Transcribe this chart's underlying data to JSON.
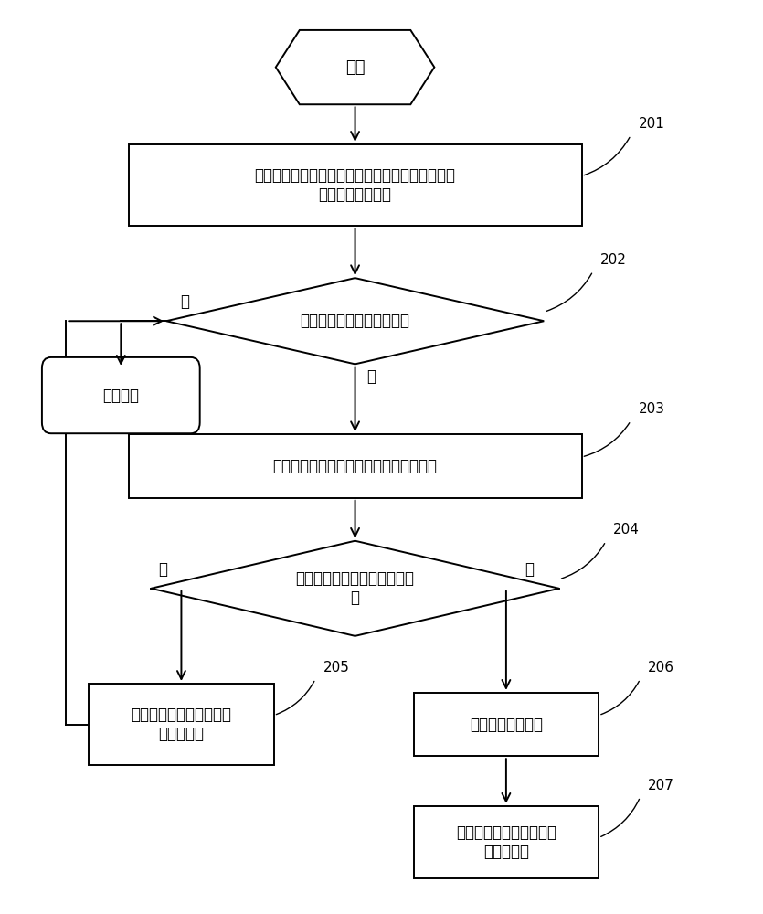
{
  "bg_color": "#ffffff",
  "line_color": "#000000",
  "box_fill": "#ffffff",
  "box_border": "#000000",
  "text_color": "#000000",
  "font_size": 12,
  "label_font_size": 11,
  "start_text": "开始",
  "n201_text": "请求服务器向调用服务器发起调用请求时，对所述\n调用请求进行监控",
  "n201_label": "201",
  "n202_text": "监控调用请求是否响应成功",
  "n202_label": "202",
  "end_text": "结束流程",
  "yes_text": "是",
  "no_text": "否",
  "n203_text": "统计所述调用服务器的累计响应失败次数",
  "n203_label": "203",
  "n204_text": "判断响应失败次数满足预设条\n件",
  "n204_label": "204",
  "n205_text": "记录所述调用服务器的响\n应失败次数",
  "n205_label": "205",
  "n206_text": "生成故障提示信息",
  "n206_label": "206",
  "n207_text": "将所述故障提示信息发送\n至用户设备",
  "n207_label": "207"
}
